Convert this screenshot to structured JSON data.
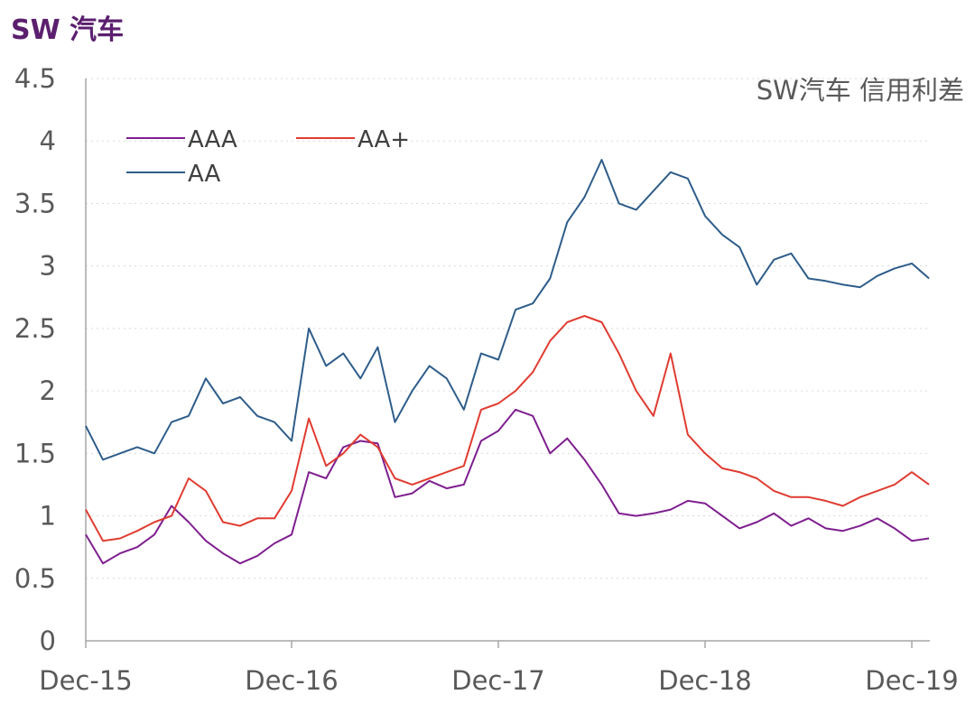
{
  "page": {
    "title": "SW 汽车"
  },
  "chart_data": {
    "type": "line",
    "title": "SW 汽车",
    "annotation": "SW汽车 信用利差",
    "x": [
      "Dec-15",
      "Jan-16",
      "Feb-16",
      "Mar-16",
      "Apr-16",
      "May-16",
      "Jun-16",
      "Jul-16",
      "Aug-16",
      "Sep-16",
      "Oct-16",
      "Nov-16",
      "Dec-16",
      "Jan-17",
      "Feb-17",
      "Mar-17",
      "Apr-17",
      "May-17",
      "Jun-17",
      "Jul-17",
      "Aug-17",
      "Sep-17",
      "Oct-17",
      "Nov-17",
      "Dec-17",
      "Jan-18",
      "Feb-18",
      "Mar-18",
      "Apr-18",
      "May-18",
      "Jun-18",
      "Jul-18",
      "Aug-18",
      "Sep-18",
      "Oct-18",
      "Nov-18",
      "Dec-18",
      "Jan-19",
      "Feb-19",
      "Mar-19",
      "Apr-19",
      "May-19",
      "Jun-19",
      "Jul-19",
      "Aug-19",
      "Sep-19",
      "Oct-19",
      "Nov-19",
      "Dec-19",
      "Jan-20"
    ],
    "x_ticks": [
      "Dec-15",
      "Dec-16",
      "Dec-17",
      "Dec-18",
      "Dec-19"
    ],
    "y_ticks": [
      "0",
      "0.5",
      "1",
      "1.5",
      "2",
      "2.5",
      "3",
      "3.5",
      "4",
      "4.5"
    ],
    "ylim": [
      0,
      4.5
    ],
    "grid": true,
    "legend_position": "top-left",
    "series": [
      {
        "name": "AAA",
        "color": "#7f1f8f",
        "values": [
          0.85,
          0.62,
          0.7,
          0.75,
          0.85,
          1.08,
          0.95,
          0.8,
          0.7,
          0.62,
          0.68,
          0.78,
          0.85,
          1.35,
          1.3,
          1.55,
          1.6,
          1.58,
          1.15,
          1.18,
          1.28,
          1.22,
          1.25,
          1.6,
          1.68,
          1.85,
          1.8,
          1.5,
          1.62,
          1.45,
          1.25,
          1.02,
          1.0,
          1.02,
          1.05,
          1.12,
          1.1,
          1.0,
          0.9,
          0.95,
          1.02,
          0.92,
          0.98,
          0.9,
          0.88,
          0.92,
          0.98,
          0.9,
          0.8,
          0.82
        ]
      },
      {
        "name": "AA+",
        "color": "#e03c31",
        "values": [
          1.05,
          0.8,
          0.82,
          0.88,
          0.95,
          1.0,
          1.3,
          1.2,
          0.95,
          0.92,
          0.98,
          0.98,
          1.2,
          1.78,
          1.4,
          1.5,
          1.65,
          1.55,
          1.3,
          1.25,
          1.3,
          1.35,
          1.4,
          1.85,
          1.9,
          2.0,
          2.15,
          2.4,
          2.55,
          2.6,
          2.55,
          2.3,
          2.0,
          1.8,
          2.3,
          1.65,
          1.5,
          1.38,
          1.35,
          1.3,
          1.2,
          1.15,
          1.15,
          1.12,
          1.08,
          1.15,
          1.2,
          1.25,
          1.35,
          1.25
        ]
      },
      {
        "name": "AA",
        "color": "#2e5d8a",
        "values": [
          1.72,
          1.45,
          1.5,
          1.55,
          1.5,
          1.75,
          1.8,
          2.1,
          1.9,
          1.95,
          1.8,
          1.75,
          1.6,
          2.5,
          2.2,
          2.3,
          2.1,
          2.35,
          1.75,
          2.0,
          2.2,
          2.1,
          1.85,
          2.3,
          2.25,
          2.65,
          2.7,
          2.9,
          3.35,
          3.55,
          3.85,
          3.5,
          3.45,
          3.6,
          3.75,
          3.7,
          3.4,
          3.25,
          3.15,
          2.85,
          3.05,
          3.1,
          2.9,
          2.88,
          2.85,
          2.83,
          2.92,
          2.98,
          3.02,
          2.9
        ]
      }
    ]
  }
}
